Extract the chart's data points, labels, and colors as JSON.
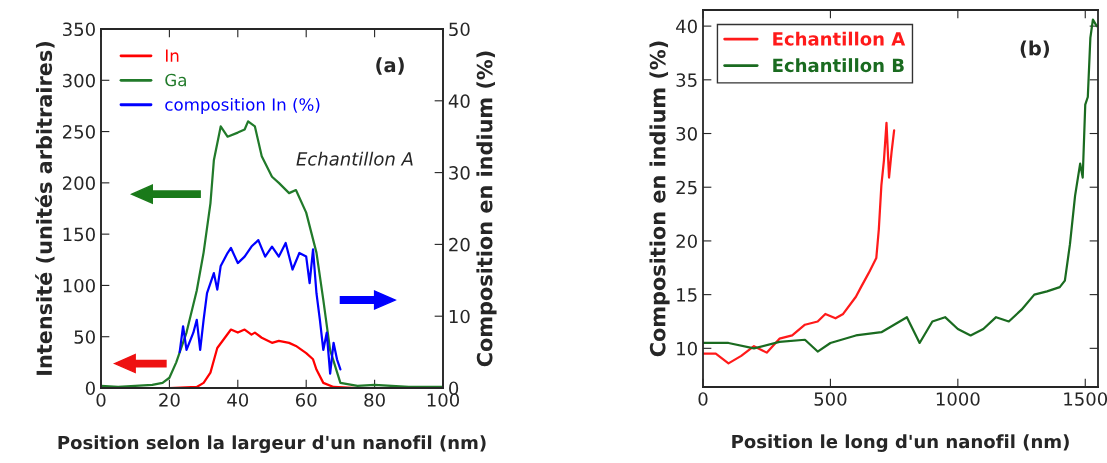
{
  "chart_data": [
    {
      "type": "line",
      "xlabel": "Position selon la largeur d'un nanofil (nm)",
      "ylabel": "Intensité (unités arbitraires)",
      "y2label": "Composition en indium (%)",
      "xlim": [
        0,
        100
      ],
      "xticks": [
        0,
        20,
        40,
        60,
        80,
        100
      ],
      "ylim": [
        0,
        350
      ],
      "yticks": [
        0,
        50,
        100,
        150,
        200,
        250,
        300,
        350
      ],
      "y2lim": [
        0,
        50
      ],
      "y2ticks": [
        0,
        10,
        20,
        30,
        40,
        50
      ],
      "legend": "top left",
      "grid": false,
      "annotations": [
        "(a)",
        "Echantillon A"
      ],
      "series": [
        {
          "name": "In",
          "color": "#ff0000",
          "x": [
            0,
            10,
            20,
            28,
            30,
            32,
            34,
            36,
            38,
            40,
            42,
            44,
            45,
            47,
            50,
            52,
            55,
            57,
            60,
            62,
            63,
            65,
            68,
            75,
            85,
            100
          ],
          "values": [
            0,
            0,
            0,
            1,
            5,
            15,
            39,
            48,
            57,
            54,
            57,
            52,
            54,
            49,
            44,
            46,
            44,
            41,
            34,
            28,
            18,
            5,
            1,
            0,
            0,
            0
          ]
        },
        {
          "name": "Ga",
          "color": "#217a2a",
          "x": [
            0,
            5,
            10,
            15,
            18,
            20,
            22,
            25,
            28,
            30,
            32,
            33,
            35,
            37,
            40,
            42,
            43,
            45,
            47,
            50,
            52,
            55,
            57,
            60,
            63,
            65,
            67,
            70,
            75,
            80,
            90,
            100
          ],
          "values": [
            2,
            1,
            2,
            3,
            5,
            10,
            25,
            54,
            95,
            132,
            180,
            222,
            255,
            245,
            249,
            252,
            260,
            255,
            226,
            206,
            200,
            190,
            193,
            171,
            132,
            86,
            37,
            5,
            2,
            3,
            1,
            1
          ]
        },
        {
          "name": "composition In (%)",
          "color": "#0000ff",
          "axis": "y2",
          "x": [
            23,
            24,
            25,
            27,
            28,
            29,
            30,
            31,
            32,
            33,
            34,
            35,
            37,
            38,
            40,
            42,
            44,
            46,
            48,
            50,
            52,
            54,
            56,
            58,
            60,
            61,
            62,
            63,
            64,
            65,
            66,
            67,
            68,
            69,
            70
          ],
          "values": [
            5,
            8.6,
            5.3,
            7.7,
            9.5,
            5.3,
            9.5,
            13.2,
            14.6,
            16,
            13.7,
            17,
            18.8,
            19.5,
            17.4,
            18.3,
            19.7,
            20.6,
            18.3,
            19.7,
            18.3,
            20.2,
            16.5,
            18.8,
            18.3,
            14.6,
            19.3,
            13.2,
            9.5,
            5.3,
            7.7,
            2,
            6.3,
            4,
            2.6
          ]
        }
      ]
    },
    {
      "type": "line",
      "xlabel": "Position le long d'un nanofil (nm)",
      "ylabel": "Composition en indium (%)",
      "xlim": [
        0,
        1550
      ],
      "xticks": [
        0,
        500,
        1000,
        1500
      ],
      "ylim": [
        6.4,
        41.5
      ],
      "yticks": [
        10,
        15,
        20,
        25,
        30,
        35,
        40
      ],
      "legend": "top left",
      "grid": false,
      "annotations": [
        "(b)"
      ],
      "series": [
        {
          "name": "Echantillon A",
          "color": "#ff1a1a",
          "x": [
            0,
            50,
            100,
            150,
            200,
            250,
            300,
            350,
            400,
            450,
            480,
            520,
            550,
            600,
            620,
            650,
            680,
            690,
            700,
            710,
            720,
            730,
            740,
            750
          ],
          "values": [
            9.5,
            9.5,
            8.6,
            9.3,
            10.2,
            9.6,
            10.9,
            11.2,
            12.2,
            12.5,
            13.2,
            12.8,
            13.2,
            14.8,
            15.7,
            17,
            18.4,
            21.1,
            25.2,
            27.5,
            31,
            25.9,
            28.3,
            30.3
          ]
        },
        {
          "name": "Echantillon B",
          "color": "#1a6b20",
          "x": [
            0,
            100,
            200,
            300,
            400,
            450,
            500,
            600,
            700,
            750,
            800,
            850,
            900,
            950,
            1000,
            1050,
            1100,
            1150,
            1200,
            1250,
            1300,
            1350,
            1400,
            1420,
            1440,
            1460,
            1480,
            1490,
            1500,
            1510,
            1520,
            1530,
            1545
          ],
          "values": [
            10.5,
            10.5,
            10,
            10.6,
            10.8,
            9.7,
            10.5,
            11.2,
            11.5,
            12.2,
            12.9,
            10.5,
            12.5,
            12.9,
            11.8,
            11.2,
            11.8,
            12.9,
            12.5,
            13.6,
            15,
            15.3,
            15.7,
            16.3,
            19.7,
            24.2,
            27.2,
            25.9,
            32.7,
            33.4,
            38.9,
            40.6,
            40
          ]
        }
      ]
    }
  ]
}
